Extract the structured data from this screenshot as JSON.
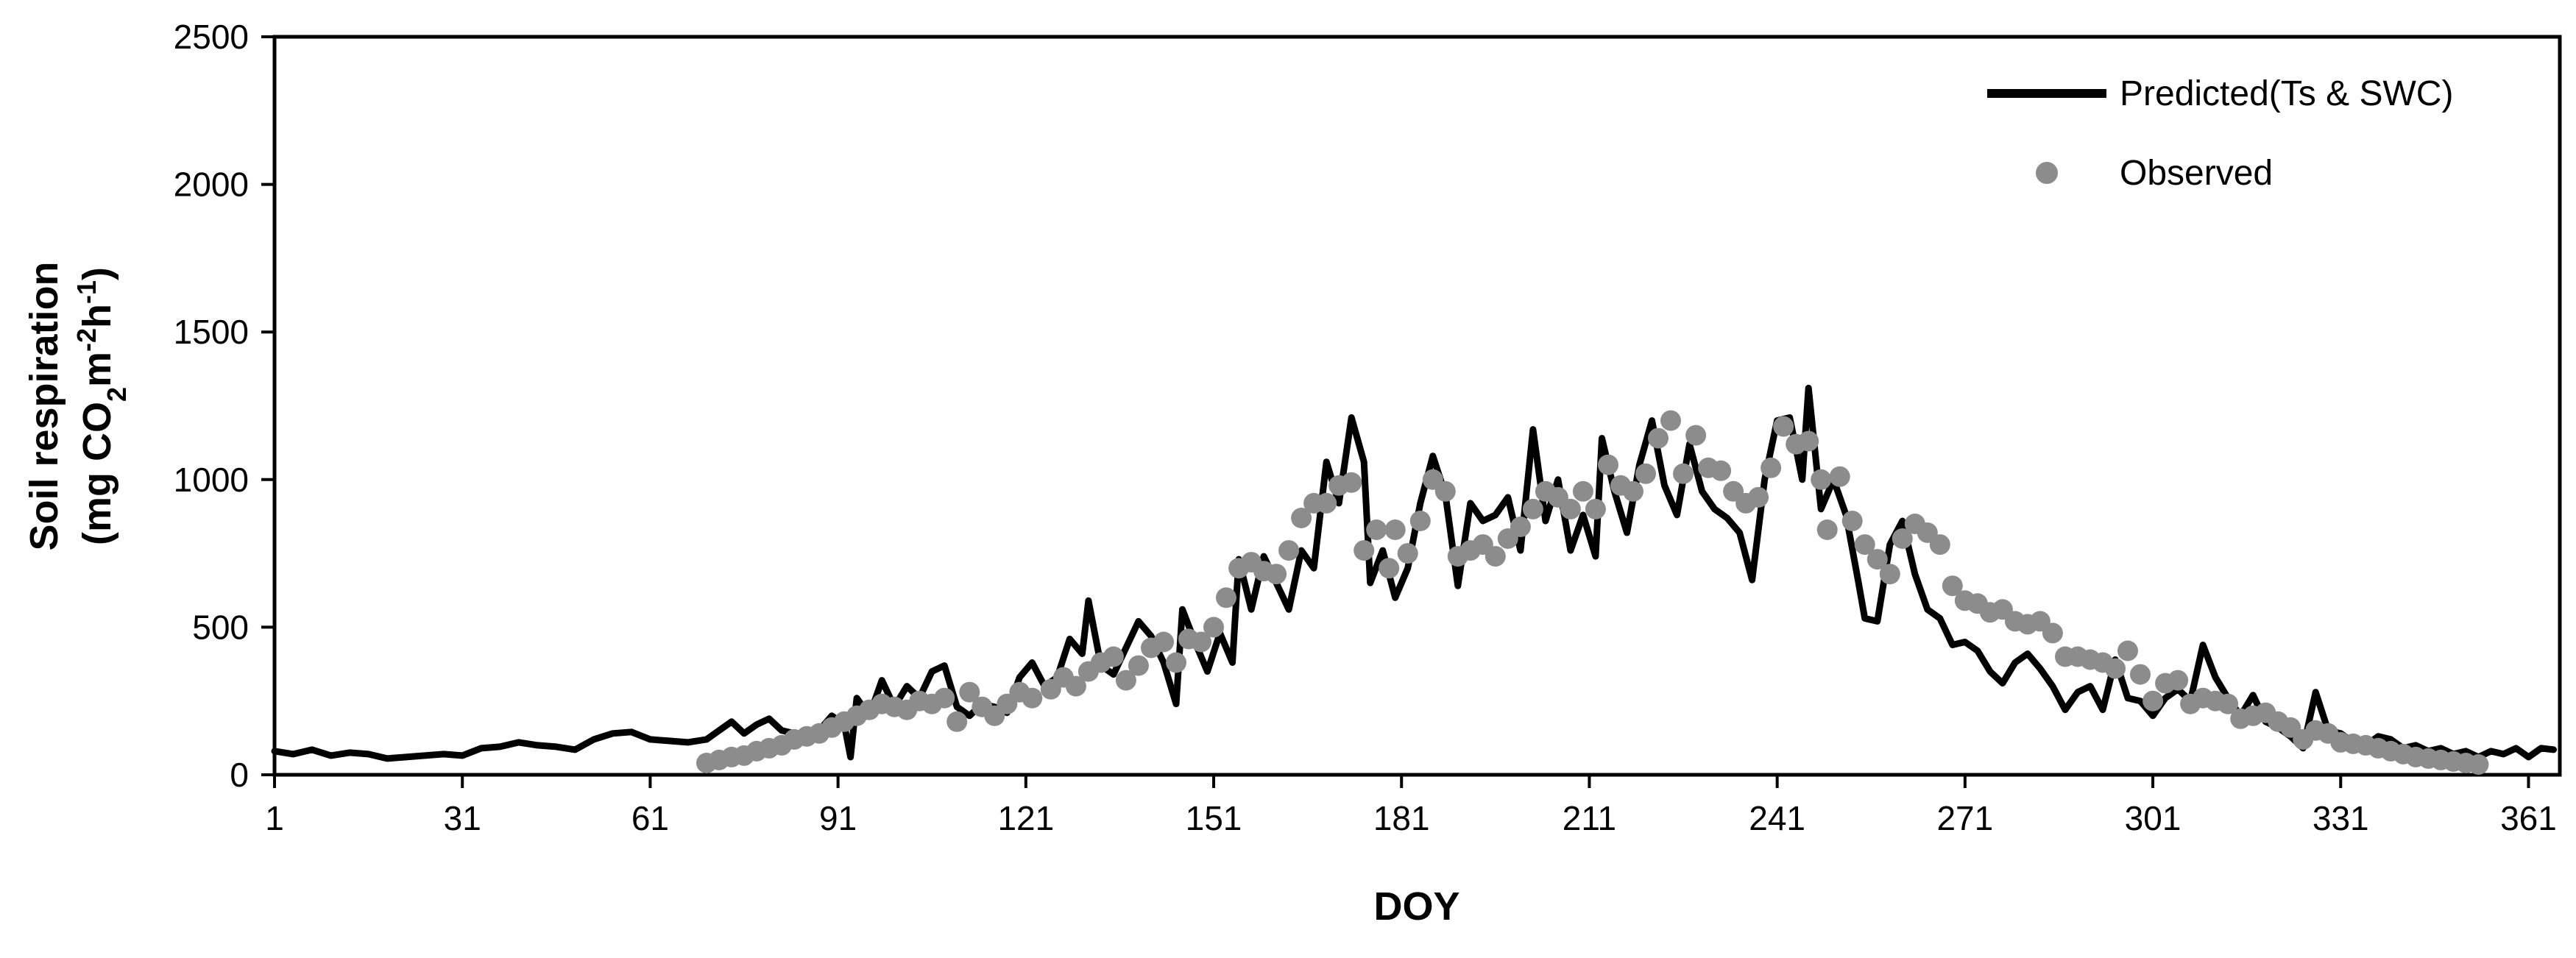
{
  "chart_data": {
    "type": "line",
    "xlabel": "DOY",
    "ylabel_line1": "Soil respiration",
    "ylabel_line2_prefix": "(mg CO",
    "ylabel_sub": "2",
    "ylabel_mid": "m",
    "ylabel_sup1": "-2",
    "ylabel_mid2": "h",
    "ylabel_sup2": "-1",
    "ylabel_suffix": ")",
    "xlim": [
      1,
      366
    ],
    "ylim": [
      0,
      2500
    ],
    "x_ticks": [
      1,
      31,
      61,
      91,
      121,
      151,
      181,
      211,
      241,
      271,
      301,
      331,
      361
    ],
    "y_ticks": [
      0,
      500,
      1000,
      1500,
      2000,
      2500
    ],
    "grid": false,
    "legend_position": "top-right",
    "colors": {
      "predicted": "#000000",
      "observed": "#8c8c8c"
    },
    "series": [
      {
        "name": "Predicted(Ts & SWC)",
        "kind": "line",
        "points": [
          [
            1,
            80
          ],
          [
            4,
            70
          ],
          [
            7,
            85
          ],
          [
            10,
            65
          ],
          [
            13,
            75
          ],
          [
            16,
            70
          ],
          [
            19,
            55
          ],
          [
            22,
            60
          ],
          [
            25,
            65
          ],
          [
            28,
            70
          ],
          [
            31,
            65
          ],
          [
            34,
            90
          ],
          [
            37,
            95
          ],
          [
            40,
            110
          ],
          [
            43,
            100
          ],
          [
            46,
            95
          ],
          [
            49,
            85
          ],
          [
            52,
            120
          ],
          [
            55,
            140
          ],
          [
            58,
            145
          ],
          [
            61,
            120
          ],
          [
            64,
            115
          ],
          [
            67,
            110
          ],
          [
            70,
            120
          ],
          [
            72,
            150
          ],
          [
            74,
            180
          ],
          [
            76,
            140
          ],
          [
            78,
            170
          ],
          [
            80,
            190
          ],
          [
            82,
            150
          ],
          [
            84,
            140
          ],
          [
            86,
            130
          ],
          [
            88,
            150
          ],
          [
            90,
            200
          ],
          [
            92,
            170
          ],
          [
            93,
            60
          ],
          [
            94,
            260
          ],
          [
            96,
            200
          ],
          [
            98,
            320
          ],
          [
            100,
            230
          ],
          [
            102,
            300
          ],
          [
            104,
            260
          ],
          [
            106,
            350
          ],
          [
            108,
            370
          ],
          [
            110,
            230
          ],
          [
            112,
            200
          ],
          [
            114,
            240
          ],
          [
            116,
            230
          ],
          [
            118,
            210
          ],
          [
            120,
            330
          ],
          [
            122,
            380
          ],
          [
            124,
            300
          ],
          [
            126,
            330
          ],
          [
            128,
            460
          ],
          [
            130,
            410
          ],
          [
            131,
            590
          ],
          [
            133,
            370
          ],
          [
            135,
            340
          ],
          [
            137,
            430
          ],
          [
            139,
            520
          ],
          [
            141,
            470
          ],
          [
            143,
            380
          ],
          [
            145,
            240
          ],
          [
            146,
            560
          ],
          [
            148,
            450
          ],
          [
            150,
            350
          ],
          [
            152,
            480
          ],
          [
            154,
            380
          ],
          [
            155,
            730
          ],
          [
            157,
            560
          ],
          [
            159,
            740
          ],
          [
            161,
            650
          ],
          [
            163,
            560
          ],
          [
            165,
            760
          ],
          [
            167,
            700
          ],
          [
            169,
            1060
          ],
          [
            171,
            920
          ],
          [
            173,
            1210
          ],
          [
            175,
            1060
          ],
          [
            176,
            650
          ],
          [
            178,
            760
          ],
          [
            180,
            600
          ],
          [
            182,
            700
          ],
          [
            184,
            920
          ],
          [
            186,
            1080
          ],
          [
            188,
            950
          ],
          [
            190,
            640
          ],
          [
            192,
            920
          ],
          [
            194,
            860
          ],
          [
            196,
            880
          ],
          [
            198,
            940
          ],
          [
            200,
            760
          ],
          [
            202,
            1170
          ],
          [
            204,
            860
          ],
          [
            206,
            1000
          ],
          [
            208,
            760
          ],
          [
            210,
            880
          ],
          [
            212,
            740
          ],
          [
            213,
            1140
          ],
          [
            215,
            960
          ],
          [
            217,
            820
          ],
          [
            219,
            1050
          ],
          [
            221,
            1200
          ],
          [
            223,
            980
          ],
          [
            225,
            880
          ],
          [
            227,
            1120
          ],
          [
            229,
            960
          ],
          [
            231,
            900
          ],
          [
            233,
            870
          ],
          [
            235,
            820
          ],
          [
            237,
            660
          ],
          [
            239,
            1000
          ],
          [
            241,
            1200
          ],
          [
            243,
            1210
          ],
          [
            245,
            1000
          ],
          [
            246,
            1310
          ],
          [
            248,
            900
          ],
          [
            250,
            1000
          ],
          [
            252,
            880
          ],
          [
            254,
            650
          ],
          [
            255,
            530
          ],
          [
            257,
            520
          ],
          [
            259,
            780
          ],
          [
            261,
            860
          ],
          [
            263,
            680
          ],
          [
            265,
            560
          ],
          [
            267,
            530
          ],
          [
            269,
            440
          ],
          [
            271,
            450
          ],
          [
            273,
            420
          ],
          [
            275,
            350
          ],
          [
            277,
            310
          ],
          [
            279,
            380
          ],
          [
            281,
            410
          ],
          [
            283,
            360
          ],
          [
            285,
            300
          ],
          [
            287,
            220
          ],
          [
            289,
            280
          ],
          [
            291,
            300
          ],
          [
            293,
            220
          ],
          [
            295,
            390
          ],
          [
            297,
            260
          ],
          [
            299,
            250
          ],
          [
            301,
            200
          ],
          [
            303,
            260
          ],
          [
            305,
            290
          ],
          [
            307,
            250
          ],
          [
            309,
            440
          ],
          [
            311,
            330
          ],
          [
            313,
            260
          ],
          [
            315,
            200
          ],
          [
            317,
            270
          ],
          [
            319,
            180
          ],
          [
            321,
            160
          ],
          [
            323,
            130
          ],
          [
            325,
            90
          ],
          [
            327,
            280
          ],
          [
            329,
            150
          ],
          [
            331,
            140
          ],
          [
            333,
            110
          ],
          [
            335,
            100
          ],
          [
            337,
            130
          ],
          [
            339,
            120
          ],
          [
            341,
            90
          ],
          [
            343,
            100
          ],
          [
            345,
            80
          ],
          [
            347,
            90
          ],
          [
            349,
            70
          ],
          [
            351,
            80
          ],
          [
            353,
            60
          ],
          [
            355,
            80
          ],
          [
            357,
            70
          ],
          [
            359,
            90
          ],
          [
            361,
            60
          ],
          [
            363,
            90
          ],
          [
            365,
            85
          ]
        ]
      },
      {
        "name": "Observed",
        "kind": "scatter",
        "points": [
          [
            70,
            40
          ],
          [
            72,
            50
          ],
          [
            74,
            60
          ],
          [
            76,
            65
          ],
          [
            78,
            80
          ],
          [
            80,
            90
          ],
          [
            82,
            100
          ],
          [
            84,
            120
          ],
          [
            86,
            130
          ],
          [
            88,
            140
          ],
          [
            90,
            160
          ],
          [
            92,
            180
          ],
          [
            94,
            200
          ],
          [
            96,
            220
          ],
          [
            98,
            240
          ],
          [
            100,
            230
          ],
          [
            102,
            220
          ],
          [
            104,
            250
          ],
          [
            106,
            240
          ],
          [
            108,
            260
          ],
          [
            110,
            180
          ],
          [
            112,
            280
          ],
          [
            114,
            230
          ],
          [
            116,
            200
          ],
          [
            118,
            240
          ],
          [
            120,
            280
          ],
          [
            122,
            260
          ],
          [
            125,
            290
          ],
          [
            127,
            330
          ],
          [
            129,
            300
          ],
          [
            131,
            350
          ],
          [
            133,
            380
          ],
          [
            135,
            400
          ],
          [
            137,
            320
          ],
          [
            139,
            370
          ],
          [
            141,
            430
          ],
          [
            143,
            450
          ],
          [
            145,
            380
          ],
          [
            147,
            460
          ],
          [
            149,
            450
          ],
          [
            151,
            500
          ],
          [
            153,
            600
          ],
          [
            155,
            700
          ],
          [
            157,
            720
          ],
          [
            159,
            690
          ],
          [
            161,
            680
          ],
          [
            163,
            760
          ],
          [
            165,
            870
          ],
          [
            167,
            920
          ],
          [
            169,
            920
          ],
          [
            171,
            980
          ],
          [
            173,
            990
          ],
          [
            175,
            760
          ],
          [
            177,
            830
          ],
          [
            179,
            700
          ],
          [
            180,
            830
          ],
          [
            182,
            750
          ],
          [
            184,
            860
          ],
          [
            186,
            1000
          ],
          [
            188,
            960
          ],
          [
            190,
            740
          ],
          [
            192,
            760
          ],
          [
            194,
            780
          ],
          [
            196,
            740
          ],
          [
            198,
            800
          ],
          [
            200,
            840
          ],
          [
            202,
            900
          ],
          [
            204,
            960
          ],
          [
            206,
            940
          ],
          [
            208,
            900
          ],
          [
            210,
            960
          ],
          [
            212,
            900
          ],
          [
            214,
            1050
          ],
          [
            216,
            980
          ],
          [
            218,
            960
          ],
          [
            220,
            1020
          ],
          [
            222,
            1140
          ],
          [
            224,
            1200
          ],
          [
            226,
            1020
          ],
          [
            228,
            1150
          ],
          [
            230,
            1040
          ],
          [
            232,
            1030
          ],
          [
            234,
            960
          ],
          [
            236,
            920
          ],
          [
            238,
            940
          ],
          [
            240,
            1040
          ],
          [
            242,
            1180
          ],
          [
            244,
            1120
          ],
          [
            246,
            1130
          ],
          [
            248,
            1000
          ],
          [
            249,
            830
          ],
          [
            251,
            1010
          ],
          [
            253,
            860
          ],
          [
            255,
            780
          ],
          [
            257,
            730
          ],
          [
            259,
            680
          ],
          [
            261,
            800
          ],
          [
            263,
            850
          ],
          [
            265,
            820
          ],
          [
            267,
            780
          ],
          [
            269,
            640
          ],
          [
            271,
            590
          ],
          [
            273,
            580
          ],
          [
            275,
            550
          ],
          [
            277,
            560
          ],
          [
            279,
            520
          ],
          [
            281,
            510
          ],
          [
            283,
            520
          ],
          [
            285,
            480
          ],
          [
            287,
            400
          ],
          [
            289,
            400
          ],
          [
            291,
            390
          ],
          [
            293,
            380
          ],
          [
            295,
            360
          ],
          [
            297,
            420
          ],
          [
            299,
            340
          ],
          [
            301,
            250
          ],
          [
            303,
            310
          ],
          [
            305,
            320
          ],
          [
            307,
            240
          ],
          [
            309,
            260
          ],
          [
            311,
            250
          ],
          [
            313,
            240
          ],
          [
            315,
            190
          ],
          [
            317,
            200
          ],
          [
            319,
            210
          ],
          [
            321,
            180
          ],
          [
            323,
            160
          ],
          [
            325,
            120
          ],
          [
            327,
            150
          ],
          [
            329,
            140
          ],
          [
            331,
            110
          ],
          [
            333,
            105
          ],
          [
            335,
            100
          ],
          [
            337,
            90
          ],
          [
            339,
            80
          ],
          [
            341,
            70
          ],
          [
            343,
            60
          ],
          [
            345,
            55
          ],
          [
            347,
            50
          ],
          [
            349,
            45
          ],
          [
            351,
            40
          ],
          [
            353,
            35
          ]
        ]
      }
    ]
  }
}
